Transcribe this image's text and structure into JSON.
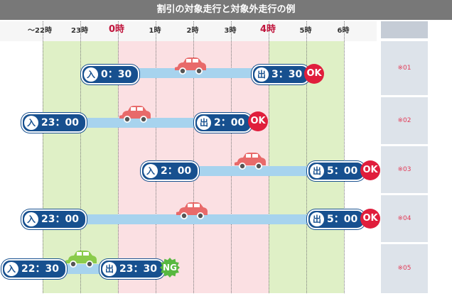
{
  "title": "割引の対象走行と対象外走行の例",
  "hours": [
    "〜22時",
    "23時",
    "0時",
    "1時",
    "2時",
    "3時",
    "4時",
    "5時",
    "6時"
  ],
  "entry_tag": "入",
  "exit_tag": "出",
  "rows": [
    {
      "entry": "0：30",
      "exit": "3：30",
      "result": "OK",
      "note": "※01"
    },
    {
      "entry": "23：00",
      "exit": "2：00",
      "result": "OK",
      "note": "※02"
    },
    {
      "entry": "2：00",
      "exit": "5：00",
      "result": "OK",
      "note": "※03"
    },
    {
      "entry": "23：00",
      "exit": "5：00",
      "result": "OK",
      "note": "※04"
    },
    {
      "entry": "22：30",
      "exit": "23：30",
      "result": "NG",
      "note": "※05"
    }
  ],
  "colors": {
    "car_red": "#e86a6a",
    "car_green": "#8acb4b",
    "ok": "#e01e3c",
    "ng": "#58b840",
    "pill": "#17508f",
    "bar": "#a7d3ee"
  }
}
